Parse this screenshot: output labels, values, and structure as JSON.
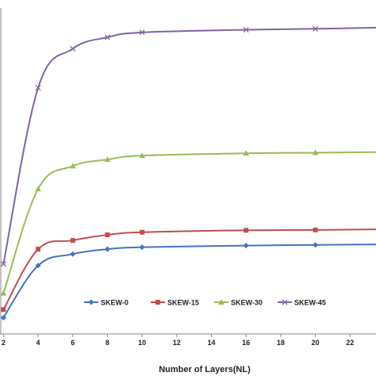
{
  "chart_data": {
    "type": "line",
    "xlabel": "Number of Layers(NL)",
    "ylabel": "",
    "x": [
      2,
      4,
      6,
      8,
      10,
      16,
      20,
      24
    ],
    "xlim": [
      1.8,
      23.5
    ],
    "x_ticks": [
      2,
      4,
      6,
      8,
      10,
      12,
      14,
      16,
      18,
      20,
      22
    ],
    "ylim": [
      0,
      100
    ],
    "grid": false,
    "legend_position": "bottom-center",
    "series": [
      {
        "name": "SKEW-0",
        "color": "#4472C4",
        "marker": "diamond",
        "values": [
          5.0,
          21.0,
          24.5,
          26.0,
          26.6,
          27.1,
          27.3,
          27.5
        ]
      },
      {
        "name": "SKEW-15",
        "color": "#C0504D",
        "marker": "square",
        "values": [
          7.5,
          26.0,
          28.7,
          30.4,
          31.2,
          31.8,
          31.9,
          32.1
        ]
      },
      {
        "name": "SKEW-30",
        "color": "#9BBB59",
        "marker": "triangle",
        "values": [
          12.5,
          44.5,
          51.5,
          53.5,
          54.7,
          55.4,
          55.6,
          55.8
        ]
      },
      {
        "name": "SKEW-45",
        "color": "#8064A2",
        "marker": "x",
        "values": [
          21.5,
          75.5,
          87.5,
          91.0,
          92.5,
          93.3,
          93.6,
          94.0
        ]
      }
    ]
  }
}
